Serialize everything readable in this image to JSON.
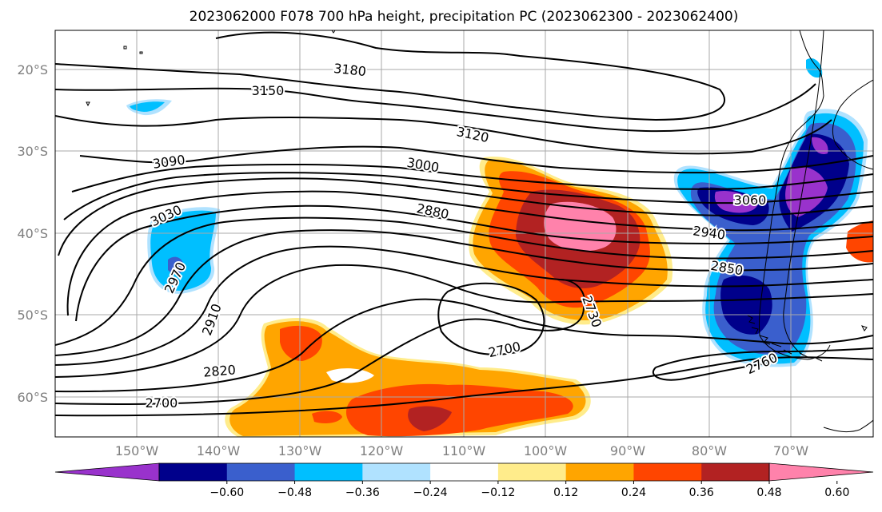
{
  "title": "2023062000 F078 700 hPa height, precipitation PC (2023062300 - 2023062400)",
  "lat_ticks": [
    "20°S",
    "30°S",
    "40°S",
    "50°S",
    "60°S"
  ],
  "lon_ticks": [
    "150°W",
    "140°W",
    "130°W",
    "120°W",
    "110°W",
    "100°W",
    "90°W",
    "80°W",
    "70°W"
  ],
  "colorbar": {
    "tick_labels": [
      "−0.60",
      "−0.48",
      "−0.36",
      "−0.24",
      "−0.12",
      "0.12",
      "0.24",
      "0.36",
      "0.48",
      "0.60"
    ],
    "colors": [
      "#9932cc",
      "#00008b",
      "#3a5fcd",
      "#00bfff",
      "#b0e2ff",
      "#ffffff",
      "#ffec8b",
      "#ffa500",
      "#ff4500",
      "#b22222",
      "#ff82ab"
    ]
  },
  "contour_labels": [
    "3180",
    "3150",
    "3120",
    "3090",
    "3060",
    "3030",
    "3000",
    "2970",
    "2940",
    "2910",
    "2880",
    "2850",
    "2820",
    "2760",
    "2730",
    "2700",
    "2700"
  ]
}
